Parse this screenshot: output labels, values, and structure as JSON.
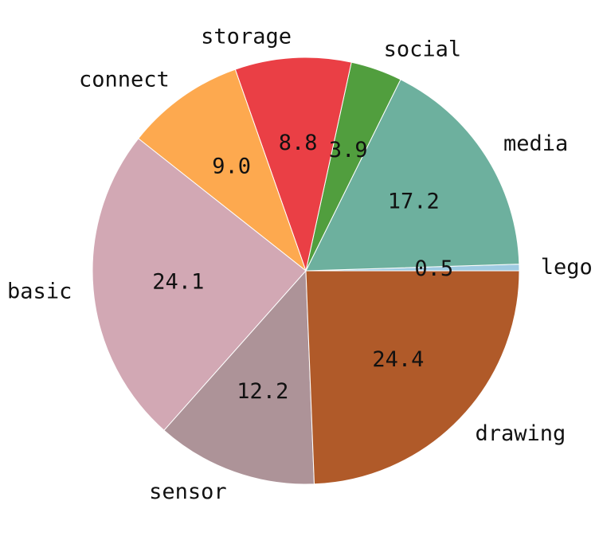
{
  "chart_data": {
    "type": "pie",
    "counterclockwise": true,
    "start_angle_deg": 0,
    "slices": [
      {
        "label": "lego",
        "value": 0.5,
        "display": "0.5",
        "color": "#9ecae1"
      },
      {
        "label": "media",
        "value": 17.2,
        "display": "17.2",
        "color": "#6db09e"
      },
      {
        "label": "social",
        "value": 3.9,
        "display": "3.9",
        "color": "#519e3e"
      },
      {
        "label": "storage",
        "value": 8.8,
        "display": "8.8",
        "color": "#ea3f45"
      },
      {
        "label": "connect",
        "value": 9.0,
        "display": "9.0",
        "color": "#fda94f"
      },
      {
        "label": "basic",
        "value": 24.1,
        "display": "24.1",
        "color": "#d2a8b4"
      },
      {
        "label": "sensor",
        "value": 12.2,
        "display": "12.2",
        "color": "#ad9398"
      },
      {
        "label": "drawing",
        "value": 24.4,
        "display": "24.4",
        "color": "#b05a29"
      }
    ]
  }
}
